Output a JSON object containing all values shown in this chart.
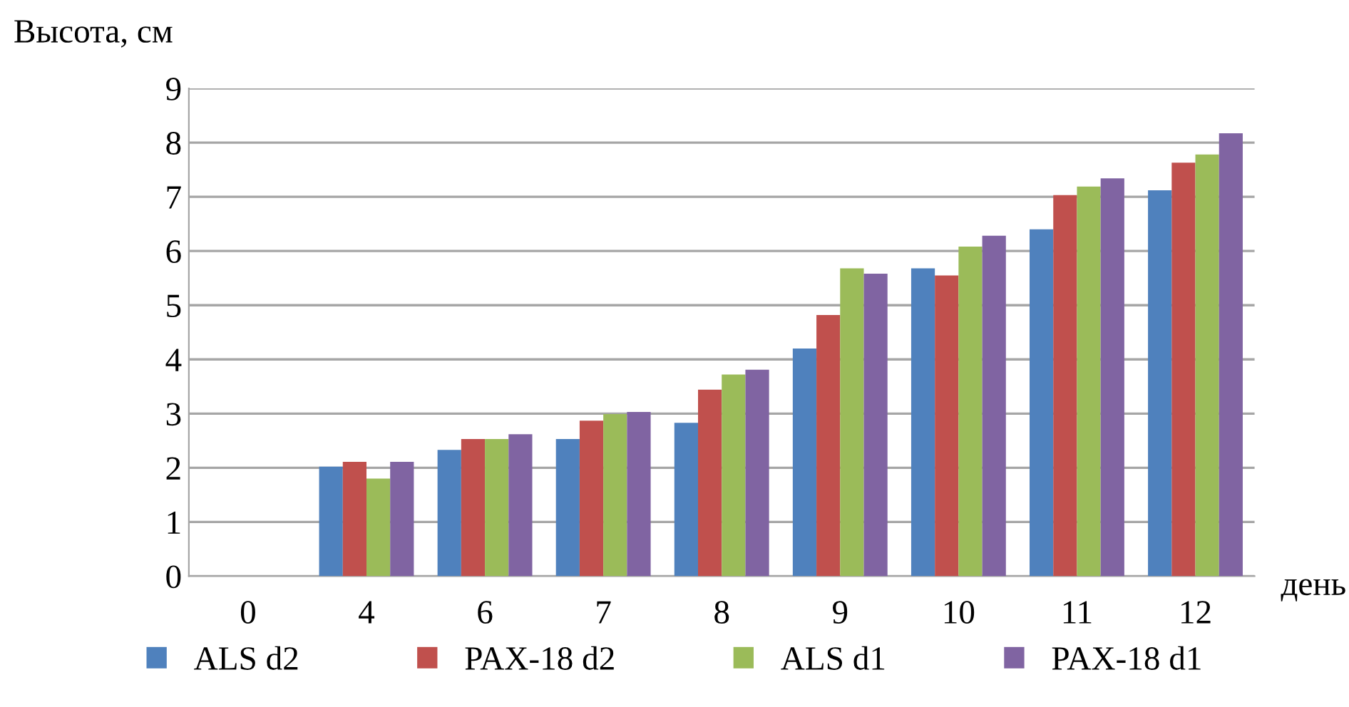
{
  "chart_data": {
    "type": "bar",
    "ylabel": "Высота, см",
    "xlabel": "день",
    "categories": [
      "0",
      "4",
      "6",
      "7",
      "8",
      "9",
      "10",
      "11",
      "12"
    ],
    "series": [
      {
        "name": "ALS d2",
        "color": "#4f81bd",
        "values": [
          0,
          2.02,
          2.33,
          2.53,
          2.83,
          4.2,
          5.68,
          6.4,
          7.12
        ]
      },
      {
        "name": "PAX-18 d2",
        "color": "#c0504d",
        "values": [
          0,
          2.11,
          2.53,
          2.87,
          3.44,
          4.82,
          5.55,
          7.03,
          7.63
        ]
      },
      {
        "name": "ALS d1",
        "color": "#9bbb59",
        "values": [
          0,
          1.8,
          2.53,
          2.99,
          3.72,
          5.68,
          6.08,
          7.19,
          7.78
        ]
      },
      {
        "name": "PAX-18 d1",
        "color": "#8064a2",
        "values": [
          0,
          2.11,
          2.62,
          3.03,
          3.81,
          5.58,
          6.28,
          7.34,
          8.17
        ]
      }
    ],
    "ylim": [
      0,
      9
    ],
    "yticks": [
      0,
      1,
      2,
      3,
      4,
      5,
      6,
      7,
      8,
      9
    ],
    "grid": "y",
    "legend": "bottom"
  }
}
